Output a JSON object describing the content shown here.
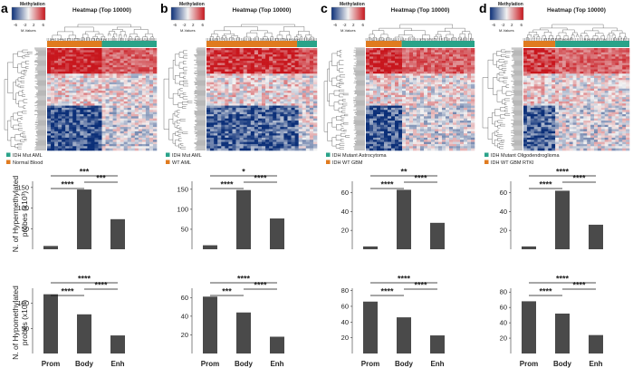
{
  "shared": {
    "methylation_label": "Methylation",
    "colorscale_ticks": [
      "-6",
      "-2",
      "2",
      "6"
    ],
    "scale_caption": "M-Values",
    "heatmap_title": "Heatmap (Top 10000)",
    "x_categories": [
      "Prom",
      "Body",
      "Enh"
    ],
    "y_label_hyper": [
      "N. of Hypermethylated",
      "probes (x10³)"
    ],
    "y_label_hypo": [
      "N. of Hypomethylated",
      "probes (x10³)"
    ],
    "colors": {
      "bar": "#4a4a4a",
      "group_orange": "#e07b1f",
      "group_teal": "#2aa389",
      "high": "#c8161d",
      "low": "#0b2f78",
      "mid": "#f2f2f2"
    }
  },
  "chart_data": [
    {
      "panel": "a",
      "type": "bar",
      "legend": [
        "IDH Mut AML",
        "Normal Blood"
      ],
      "heatmap_split": 0.5,
      "hyper": {
        "categories": [
          "Prom",
          "Body",
          "Enh"
        ],
        "values": [
          8,
          145,
          73
        ],
        "ylim": [
          0,
          165
        ],
        "ticks": [
          50,
          100,
          150
        ],
        "significance": [
          [
            "Prom",
            "Body",
            "****"
          ],
          [
            "Prom",
            "Enh",
            "***"
          ],
          [
            "Body",
            "Enh",
            "***"
          ]
        ]
      },
      "hypo": {
        "categories": [
          "Prom",
          "Body",
          "Enh"
        ],
        "values": [
          118,
          78,
          36
        ],
        "ylim": [
          0,
          130
        ],
        "ticks": [
          50,
          100
        ],
        "significance": [
          [
            "Prom",
            "Body",
            "****"
          ],
          [
            "Prom",
            "Enh",
            "****"
          ],
          [
            "Body",
            "Enh",
            "****"
          ]
        ]
      }
    },
    {
      "panel": "b",
      "type": "bar",
      "legend": [
        "IDH Mut AML",
        "WT AML"
      ],
      "heatmap_split": 0.82,
      "hyper": {
        "categories": [
          "Prom",
          "Body",
          "Enh"
        ],
        "values": [
          10,
          148,
          77
        ],
        "ylim": [
          0,
          170
        ],
        "ticks": [
          50,
          100,
          150
        ],
        "significance": [
          [
            "Prom",
            "Body",
            "****"
          ],
          [
            "Prom",
            "Enh",
            "*"
          ],
          [
            "Body",
            "Enh",
            "****"
          ]
        ]
      },
      "hypo": {
        "categories": [
          "Prom",
          "Body",
          "Enh"
        ],
        "values": [
          61,
          44,
          18
        ],
        "ylim": [
          0,
          70
        ],
        "ticks": [
          20,
          40,
          60
        ],
        "significance": [
          [
            "Prom",
            "Body",
            "***"
          ],
          [
            "Prom",
            "Enh",
            "****"
          ],
          [
            "Body",
            "Enh",
            "****"
          ]
        ]
      }
    },
    {
      "panel": "c",
      "type": "bar",
      "legend": [
        "IDH Mutant Astrocytoma",
        "IDH WT GBM"
      ],
      "heatmap_split": 0.33,
      "hyper": {
        "categories": [
          "Prom",
          "Body",
          "Enh"
        ],
        "values": [
          3,
          63,
          28
        ],
        "ylim": [
          0,
          72
        ],
        "ticks": [
          20,
          40,
          60
        ],
        "significance": [
          [
            "Prom",
            "Body",
            "****"
          ],
          [
            "Prom",
            "Enh",
            "**"
          ],
          [
            "Body",
            "Enh",
            "****"
          ]
        ]
      },
      "hypo": {
        "categories": [
          "Prom",
          "Body",
          "Enh"
        ],
        "values": [
          66,
          46,
          23
        ],
        "ylim": [
          0,
          83
        ],
        "ticks": [
          20,
          40,
          60,
          80
        ],
        "significance": [
          [
            "Prom",
            "Body",
            "****"
          ],
          [
            "Prom",
            "Enh",
            "****"
          ],
          [
            "Body",
            "Enh",
            "****"
          ]
        ]
      }
    },
    {
      "panel": "d",
      "type": "bar",
      "legend": [
        "IDH Mutant Oligodendroglioma",
        "IDH WT GBM RTKI"
      ],
      "heatmap_split": 0.3,
      "hyper": {
        "categories": [
          "Prom",
          "Body",
          "Enh"
        ],
        "values": [
          3,
          62,
          26
        ],
        "ylim": [
          0,
          72
        ],
        "ticks": [
          20,
          40,
          60
        ],
        "significance": [
          [
            "Prom",
            "Body",
            "****"
          ],
          [
            "Prom",
            "Enh",
            "****"
          ],
          [
            "Body",
            "Enh",
            "****"
          ]
        ]
      },
      "hypo": {
        "categories": [
          "Prom",
          "Body",
          "Enh"
        ],
        "values": [
          68,
          52,
          24
        ],
        "ylim": [
          0,
          85
        ],
        "ticks": [
          20,
          40,
          60,
          80
        ],
        "significance": [
          [
            "Prom",
            "Body",
            "****"
          ],
          [
            "Prom",
            "Enh",
            "****"
          ],
          [
            "Body",
            "Enh",
            "****"
          ]
        ]
      }
    }
  ]
}
